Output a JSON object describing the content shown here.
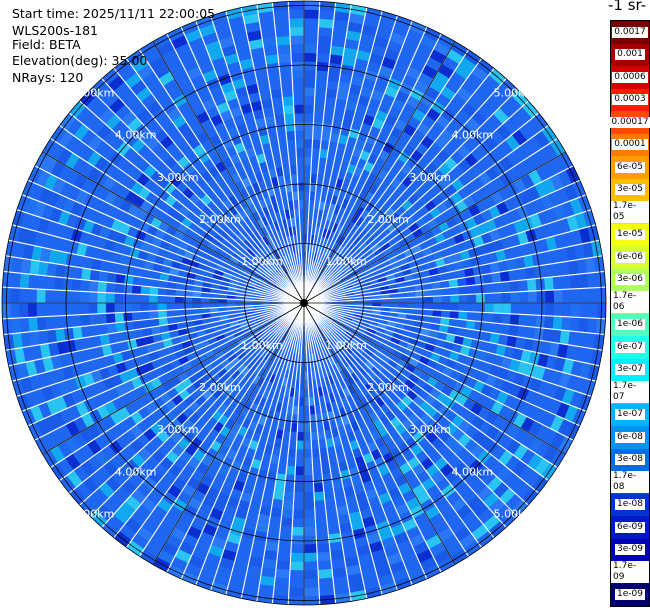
{
  "header": {
    "start_time": "Start time: 2025/11/11 22:00:05",
    "instrument": "WLS200s-181",
    "field": "Field: BETA",
    "elevation": "Elevation(deg): 35.00",
    "nrays": "NRays: 120"
  },
  "colorbar": {
    "unit_title": "-1 sr-",
    "labels": [
      "0.0017",
      "0.001",
      "0.0006",
      "0.0003",
      "0.00017",
      "0.0001",
      "6e-05",
      "3e-05",
      "1.7e-05",
      "1e-05",
      "6e-06",
      "3e-06",
      "1.7e-06",
      "1e-06",
      "6e-07",
      "3e-07",
      "1.7e-07",
      "1e-07",
      "6e-08",
      "3e-08",
      "1.7e-08",
      "1e-08",
      "6e-09",
      "3e-09",
      "1.7e-09",
      "1e-09"
    ],
    "colors": [
      "#7a0000",
      "#a50000",
      "#d40000",
      "#ff1a00",
      "#ff4a00",
      "#ff7a00",
      "#ff9e00",
      "#ffbe00",
      "#ffe000",
      "#f4ff10",
      "#d8ff30",
      "#b0ff60",
      "#80ff90",
      "#50ffc0",
      "#20ffe8",
      "#00f0ff",
      "#00d4ff",
      "#00b4ff",
      "#0094f0",
      "#0070e0",
      "#0050d8",
      "#0034d0",
      "#0018c8",
      "#0000b8",
      "#00009a",
      "#000070"
    ]
  },
  "range_rings": {
    "labels": [
      "1.00km",
      "2.00km",
      "3.00km",
      "4.00km",
      "5.00km"
    ]
  },
  "nrays": 120
}
